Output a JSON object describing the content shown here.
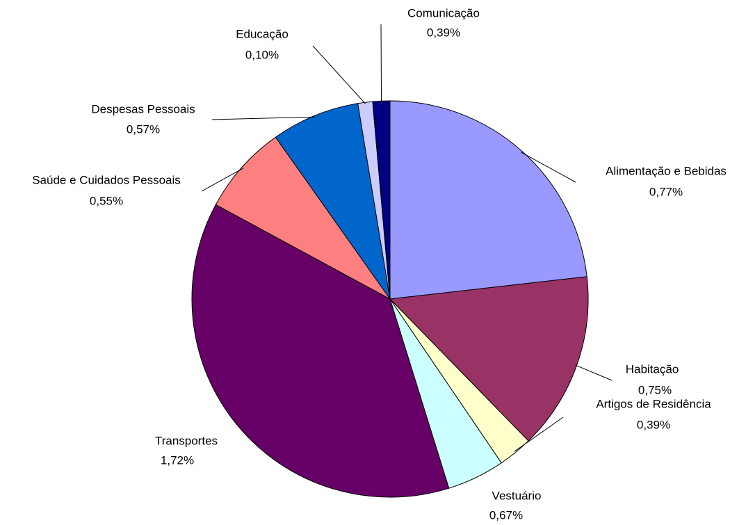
{
  "chart_data": {
    "type": "pie",
    "categories": [
      "Alimentação e Bebidas",
      "Habitação",
      "Artigos de Residência",
      "Vestuário",
      "Transportes",
      "Saúde e Cuidados Pessoais",
      "Despesas Pessoais",
      "Educação",
      "Comunicação"
    ],
    "values": [
      23.2,
      14.5,
      2.8,
      4.7,
      37.7,
      7.3,
      7.2,
      1.2,
      1.4
    ],
    "rate_labels": [
      "0,77%",
      "0,75%",
      "0,39%",
      "0,67%",
      "1,72%",
      "0,55%",
      "0,57%",
      "0,10%",
      "0,39%"
    ],
    "colors": [
      "#9999ff",
      "#993366",
      "#ffffcc",
      "#ccffff",
      "#660066",
      "#ff8080",
      "#0066cc",
      "#ccccff",
      "#000080"
    ]
  }
}
